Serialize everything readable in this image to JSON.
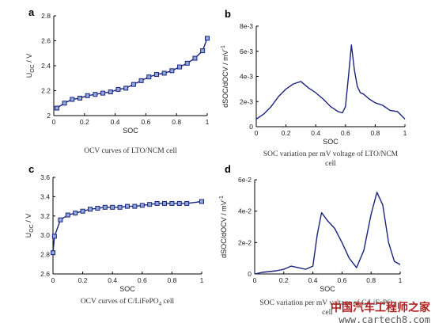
{
  "chart_data": [
    {
      "panel": "a",
      "type": "line",
      "ylabel_main": "U",
      "ylabel_sub": "OC",
      "ylabel_unit": " / V",
      "xlabel": "SOC",
      "xlim": [
        0,
        1
      ],
      "ylim": [
        2.0,
        2.8
      ],
      "xticks": [
        "0",
        "0.2",
        "0.4",
        "0.6",
        "0.8",
        "1"
      ],
      "yticks": [
        "2",
        "2.2",
        "2.4",
        "2.6",
        "2.8"
      ],
      "markers": true,
      "x": [
        0.02,
        0.07,
        0.12,
        0.17,
        0.22,
        0.27,
        0.32,
        0.37,
        0.42,
        0.47,
        0.52,
        0.57,
        0.62,
        0.67,
        0.72,
        0.77,
        0.82,
        0.87,
        0.92,
        0.97,
        1.0
      ],
      "y": [
        2.06,
        2.1,
        2.13,
        2.14,
        2.16,
        2.17,
        2.18,
        2.19,
        2.21,
        2.22,
        2.25,
        2.28,
        2.31,
        2.33,
        2.34,
        2.36,
        2.39,
        2.42,
        2.46,
        2.52,
        2.62
      ],
      "caption": "OCV curves of LTO/NCM cell"
    },
    {
      "panel": "b",
      "type": "line",
      "ylabel": "dSOC/dOCV / mV",
      "ylabel_sup": "-1",
      "xlabel": "SOC",
      "xlim": [
        0,
        1
      ],
      "ylim": [
        0,
        0.008
      ],
      "xticks": [
        "0",
        "0.2",
        "0.4",
        "0.6",
        "0.8",
        "1"
      ],
      "yticks": [
        "0",
        "2e-3",
        "4e-3",
        "6e-3",
        "8e-3"
      ],
      "markers": false,
      "x": [
        0.0,
        0.05,
        0.1,
        0.15,
        0.2,
        0.25,
        0.3,
        0.35,
        0.4,
        0.45,
        0.5,
        0.55,
        0.58,
        0.6,
        0.62,
        0.64,
        0.66,
        0.68,
        0.7,
        0.72,
        0.76,
        0.8,
        0.85,
        0.9,
        0.95,
        1.0
      ],
      "y": [
        0.0006,
        0.001,
        0.0016,
        0.0024,
        0.003,
        0.0034,
        0.0036,
        0.0031,
        0.0027,
        0.0022,
        0.0016,
        0.0012,
        0.0011,
        0.0016,
        0.004,
        0.0065,
        0.0045,
        0.0032,
        0.0027,
        0.0026,
        0.0022,
        0.0019,
        0.0017,
        0.0013,
        0.0012,
        0.0006
      ],
      "caption_line1": "SOC variation per mV voltage of LTO/NCM",
      "caption_line2": "cell"
    },
    {
      "panel": "c",
      "type": "line",
      "ylabel_main": "U",
      "ylabel_sub": "OC",
      "ylabel_unit": " / V",
      "xlabel": "SOC",
      "xlim": [
        0,
        1
      ],
      "ylim": [
        2.6,
        3.6
      ],
      "xticks": [
        "0",
        "0.2",
        "0.4",
        "0.6",
        "0.8",
        "1"
      ],
      "yticks": [
        "2.6",
        "2.8",
        "3.0",
        "3.2",
        "3.4",
        "3.6"
      ],
      "markers": true,
      "x": [
        0.0,
        0.01,
        0.05,
        0.1,
        0.15,
        0.2,
        0.25,
        0.3,
        0.35,
        0.4,
        0.45,
        0.5,
        0.55,
        0.6,
        0.65,
        0.7,
        0.75,
        0.8,
        0.85,
        0.9,
        1.0
      ],
      "y": [
        2.82,
        2.99,
        3.16,
        3.21,
        3.23,
        3.25,
        3.27,
        3.28,
        3.29,
        3.29,
        3.29,
        3.3,
        3.3,
        3.31,
        3.32,
        3.33,
        3.33,
        3.33,
        3.33,
        3.33,
        3.35
      ],
      "caption_pre": "OCV curves of C/LiFePO",
      "caption_sub": "4",
      "caption_post": " cell"
    },
    {
      "panel": "d",
      "type": "line",
      "ylabel": "dSOC/dOCV / mV",
      "ylabel_sup": "-1",
      "xlabel": "SOC",
      "xlim": [
        0,
        1
      ],
      "ylim": [
        0,
        0.06
      ],
      "xticks": [
        "0",
        "0.2",
        "0.4",
        "0.6",
        "0.8",
        "1"
      ],
      "yticks": [
        "0",
        "2e-2",
        "4e-2",
        "6e-2"
      ],
      "markers": false,
      "x": [
        0.0,
        0.05,
        0.1,
        0.15,
        0.2,
        0.25,
        0.3,
        0.35,
        0.4,
        0.43,
        0.46,
        0.5,
        0.55,
        0.6,
        0.65,
        0.7,
        0.75,
        0.8,
        0.84,
        0.88,
        0.92,
        0.96,
        1.0
      ],
      "y": [
        0.0,
        0.001,
        0.0015,
        0.002,
        0.003,
        0.005,
        0.004,
        0.003,
        0.005,
        0.025,
        0.039,
        0.034,
        0.029,
        0.02,
        0.01,
        0.004,
        0.015,
        0.038,
        0.052,
        0.044,
        0.02,
        0.008,
        0.006
      ],
      "caption_pre": "SOC variation per mV voltage of C/LiFePO",
      "caption_sub": "4",
      "caption_line2": "cell"
    }
  ],
  "colors": {
    "line": "#1a237e",
    "marker_fill": "#8fa8d8",
    "axis": "#000000"
  },
  "watermark": {
    "text": "中国汽车工程师之家",
    "url": "www.cartech8.com"
  }
}
